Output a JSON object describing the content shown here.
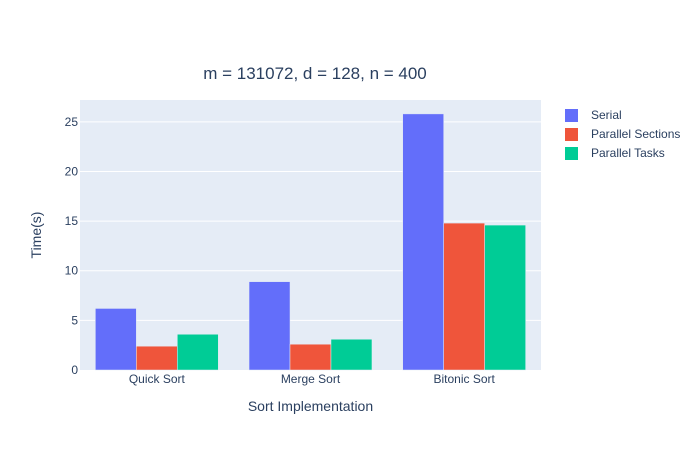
{
  "chart_data": {
    "type": "bar",
    "title": "m = 131072, d = 128, n = 400",
    "xlabel": "Sort Implementation",
    "ylabel": "Time(s)",
    "categories": [
      "Quick Sort",
      "Merge Sort",
      "Bitonic Sort"
    ],
    "series": [
      {
        "name": "Serial",
        "color": "#636efa",
        "values": [
          6.2,
          8.9,
          25.8
        ]
      },
      {
        "name": "Parallel Sections",
        "color": "#ef553b",
        "values": [
          2.4,
          2.6,
          14.8
        ]
      },
      {
        "name": "Parallel Tasks",
        "color": "#00cc96",
        "values": [
          3.6,
          3.1,
          14.6
        ]
      }
    ],
    "y_ticks": [
      0,
      5,
      10,
      15,
      20,
      25
    ],
    "ylim": [
      0,
      27.2
    ],
    "grid": true,
    "legend_position": "top-right",
    "plot_background": "#e5ecf6"
  }
}
